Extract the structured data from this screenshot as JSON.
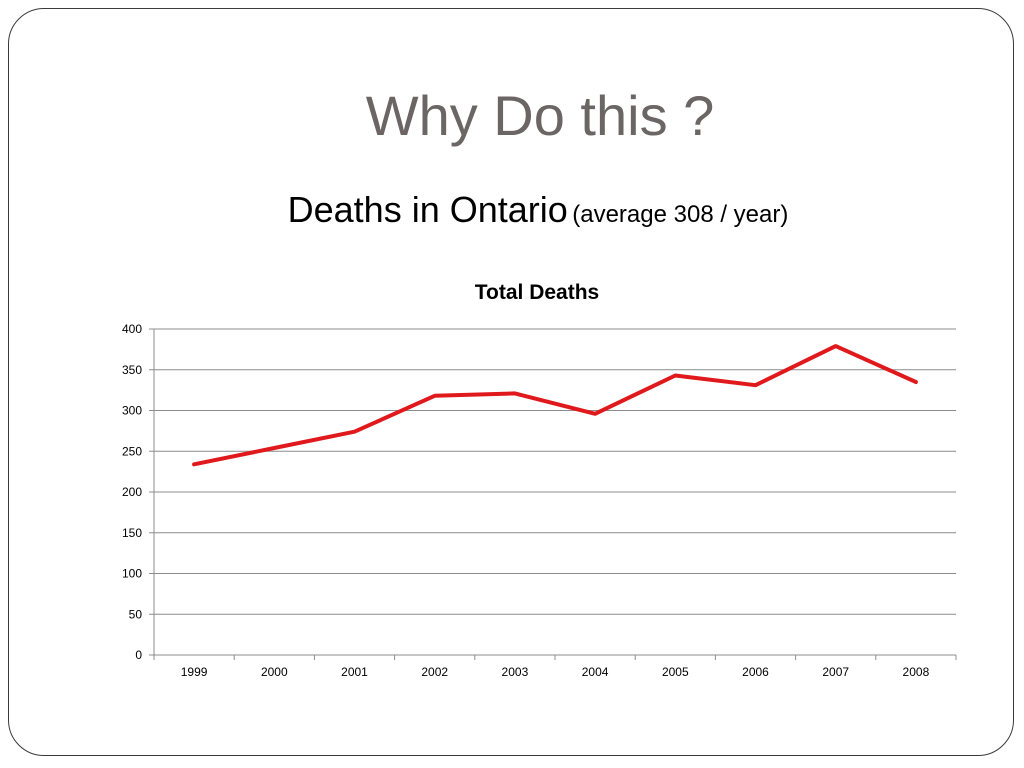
{
  "slide": {
    "title": "Why Do this ?",
    "subtitle_main": "Deaths in Ontario",
    "subtitle_note": "(average 308 / year)"
  },
  "chart_data": {
    "type": "line",
    "title": "Total Deaths",
    "xlabel": "",
    "ylabel": "",
    "categories": [
      "1999",
      "2000",
      "2001",
      "2002",
      "2003",
      "2004",
      "2005",
      "2006",
      "2007",
      "2008"
    ],
    "series": [
      {
        "values": [
          234,
          254,
          274,
          318,
          321,
          296,
          343,
          331,
          379,
          335
        ],
        "color": "#e0191c"
      }
    ],
    "ylim": [
      0,
      400
    ],
    "yticks": [
      "0",
      "50",
      "100",
      "150",
      "200",
      "250",
      "300",
      "350",
      "400"
    ],
    "grid": true,
    "legend": "none",
    "colors": {
      "gridline": "#8c8c8c",
      "axis": "#8c8c8c"
    }
  }
}
